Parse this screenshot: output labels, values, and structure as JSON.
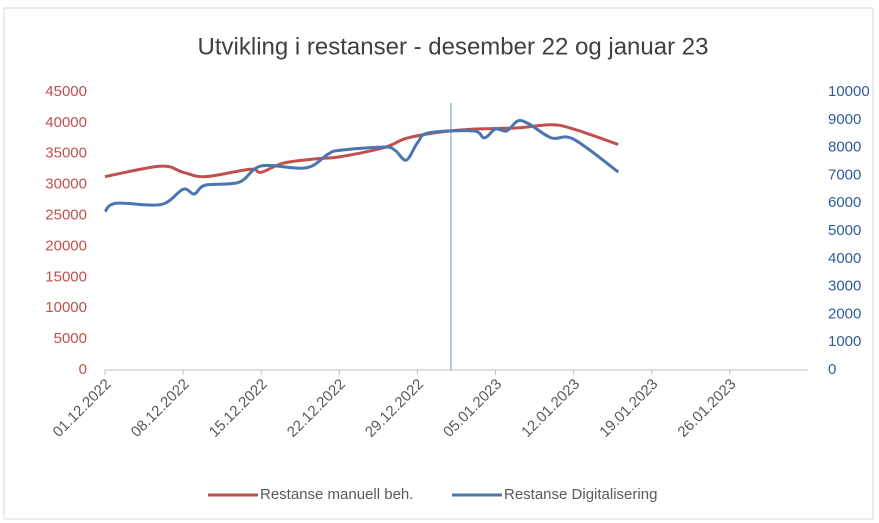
{
  "chart_data": {
    "type": "line",
    "title": "Utvikling i restanser - desember 22 og januar 23",
    "xlim": [
      "01.12.2022",
      "02.02.2023"
    ],
    "xticks": [
      "01.12.2022",
      "08.12.2022",
      "15.12.2022",
      "22.12.2022",
      "29.12.2022",
      "05.01.2023",
      "12.01.2023",
      "19.01.2023",
      "26.01.2023"
    ],
    "ylim": [
      0,
      45000
    ],
    "yticks": [
      0,
      5000,
      10000,
      15000,
      20000,
      25000,
      30000,
      35000,
      40000,
      45000
    ],
    "y2lim": [
      0,
      10000
    ],
    "y2ticks": [
      0,
      1000,
      2000,
      3000,
      4000,
      5000,
      6000,
      7000,
      8000,
      9000,
      10000
    ],
    "reference_line_x": "01.01.2023",
    "series": [
      {
        "name": "Restanse manuell beh.",
        "color": "#c0504d",
        "x": [
          "01.12.2022",
          "06.12.2022",
          "08.12.2022",
          "10.12.2022",
          "14.12.2022",
          "15.12.2022",
          "17.12.2022",
          "20.12.2022",
          "22.12.2022",
          "26.12.2022",
          "28.12.2022",
          "31.12.2022",
          "03.01.2023",
          "07.01.2023",
          "10.01.2023",
          "12.01.2023",
          "16.01.2023"
        ],
        "values": [
          31300,
          33000,
          32000,
          31300,
          32500,
          32000,
          33500,
          34200,
          34500,
          36000,
          37500,
          38500,
          39000,
          39200,
          39700,
          39000,
          36500
        ]
      },
      {
        "name": "Restanse Digitalisering",
        "color": "#4a76b0",
        "axis": "y2",
        "x": [
          "01.12.2022",
          "02.12.2022",
          "06.12.2022",
          "08.12.2022",
          "09.12.2022",
          "10.12.2022",
          "13.12.2022",
          "15.12.2022",
          "19.12.2022",
          "21.12.2022",
          "22.12.2022",
          "26.12.2022",
          "27.12.2022",
          "28.12.2022",
          "29.12.2022",
          "30.12.2022",
          "03.01.2023",
          "04.01.2023",
          "05.01.2023",
          "06.01.2023",
          "07.01.2023",
          "08.01.2023",
          "10.01.2023",
          "12.01.2023",
          "16.01.2023"
        ],
        "values": [
          5700,
          6000,
          5950,
          6500,
          6330,
          6650,
          6750,
          7340,
          7270,
          7770,
          7900,
          8020,
          7900,
          7550,
          8170,
          8530,
          8600,
          8350,
          8670,
          8600,
          8960,
          8850,
          8350,
          8300,
          7120
        ]
      }
    ]
  }
}
